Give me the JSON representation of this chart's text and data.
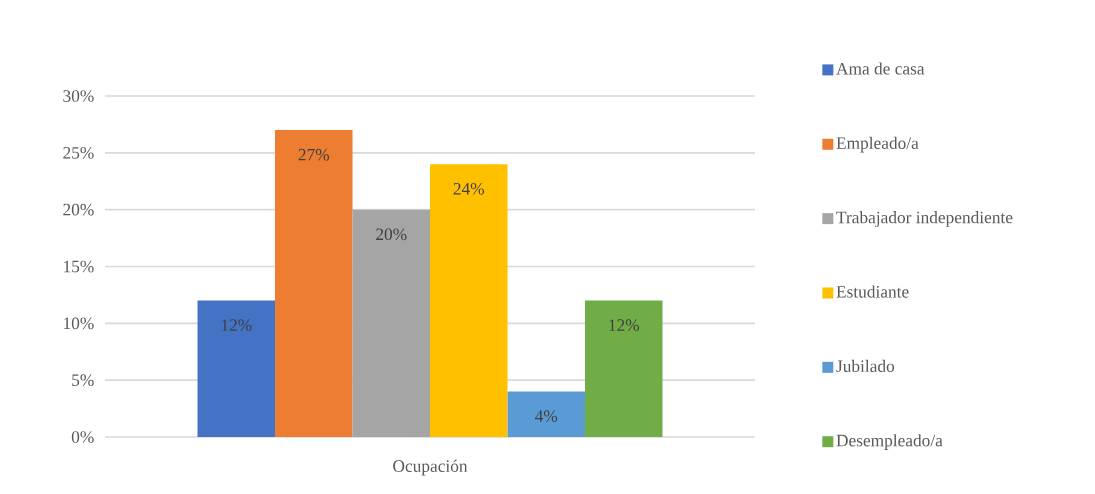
{
  "chart_data": {
    "type": "bar",
    "categories": [
      "Ocupación"
    ],
    "series": [
      {
        "name": "Ama de casa",
        "color": "#4472c4",
        "values": [
          12
        ],
        "value_labels": [
          "12%"
        ]
      },
      {
        "name": "Empleado/a",
        "color": "#ed7d31",
        "values": [
          27
        ],
        "value_labels": [
          "27%"
        ]
      },
      {
        "name": "Trabajador independiente",
        "color": "#a5a5a5",
        "values": [
          20
        ],
        "value_labels": [
          "20%"
        ]
      },
      {
        "name": "Estudiante",
        "color": "#ffc000",
        "values": [
          24
        ],
        "value_labels": [
          "24%"
        ]
      },
      {
        "name": "Jubilado",
        "color": "#5b9bd5",
        "values": [
          4
        ],
        "value_labels": [
          "4%"
        ]
      },
      {
        "name": "Desempleado/a",
        "color": "#70ad47",
        "values": [
          12
        ],
        "value_labels": [
          "12%"
        ]
      }
    ],
    "ylim": [
      0,
      30
    ],
    "yticks": [
      {
        "value": 0,
        "label": "0%"
      },
      {
        "value": 5,
        "label": "5%"
      },
      {
        "value": 10,
        "label": "10%"
      },
      {
        "value": 15,
        "label": "15%"
      },
      {
        "value": 20,
        "label": "20%"
      },
      {
        "value": 25,
        "label": "25%"
      },
      {
        "value": 30,
        "label": "30%"
      }
    ],
    "grid": "y",
    "legend": "right"
  }
}
